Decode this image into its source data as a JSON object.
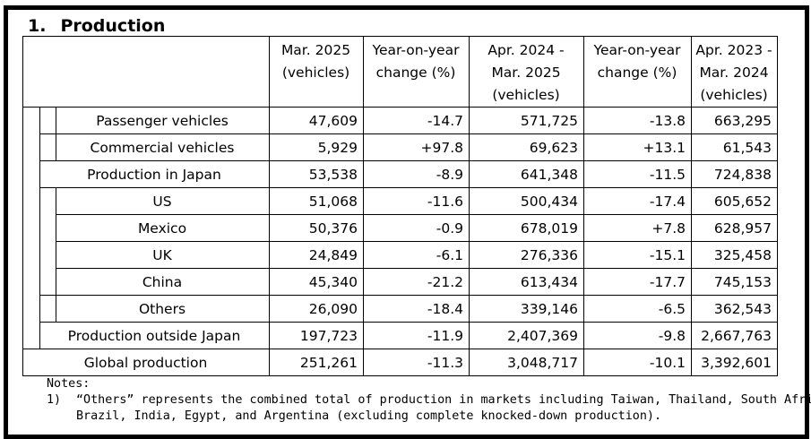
{
  "section": {
    "number": "1.",
    "title": "Production"
  },
  "table": {
    "columns": [
      {
        "line1": "Mar. 2025",
        "line2": "(vehicles)",
        "line3": ""
      },
      {
        "line1": "Year-on-year",
        "line2": "change (%)",
        "line3": ""
      },
      {
        "line1": "Apr. 2024 -",
        "line2": "Mar. 2025",
        "line3": "(vehicles)"
      },
      {
        "line1": "Year-on-year",
        "line2": "change (%)",
        "line3": ""
      },
      {
        "line1": "Apr. 2023 -",
        "line2": "Mar. 2024",
        "line3": "(vehicles)"
      }
    ],
    "rows": [
      {
        "label": "Passenger vehicles",
        "values": [
          "47,609",
          "-14.7",
          "571,725",
          "-13.8",
          "663,295"
        ]
      },
      {
        "label": "Commercial vehicles",
        "values": [
          "5,929",
          "+97.8",
          "69,623",
          "+13.1",
          "61,543"
        ]
      },
      {
        "label": "Production in Japan",
        "values": [
          "53,538",
          "-8.9",
          "641,348",
          "-11.5",
          "724,838"
        ]
      },
      {
        "label": "US",
        "values": [
          "51,068",
          "-11.6",
          "500,434",
          "-17.4",
          "605,652"
        ]
      },
      {
        "label": "Mexico",
        "values": [
          "50,376",
          "-0.9",
          "678,019",
          "+7.8",
          "628,957"
        ]
      },
      {
        "label": "UK",
        "values": [
          "24,849",
          "-6.1",
          "276,336",
          "-15.1",
          "325,458"
        ]
      },
      {
        "label": "China",
        "values": [
          "45,340",
          "-21.2",
          "613,434",
          "-17.7",
          "745,153"
        ]
      },
      {
        "label": "Others",
        "values": [
          "26,090",
          "-18.4",
          "339,146",
          "-6.5",
          "362,543"
        ]
      },
      {
        "label": "Production outside Japan",
        "values": [
          "197,723",
          "-11.9",
          "2,407,369",
          "-9.8",
          "2,667,763"
        ]
      },
      {
        "label": "Global production",
        "values": [
          "251,261",
          "-11.3",
          "3,048,717",
          "-10.1",
          "3,392,601"
        ]
      }
    ]
  },
  "notes": {
    "heading": "Notes:",
    "items": [
      {
        "marker": "1)",
        "line1": "“Others” represents the combined total of production in markets including Taiwan, Thailand, South Africa,",
        "line2": "Brazil, India, Egypt, and Argentina (excluding complete knocked-down production)."
      }
    ]
  }
}
